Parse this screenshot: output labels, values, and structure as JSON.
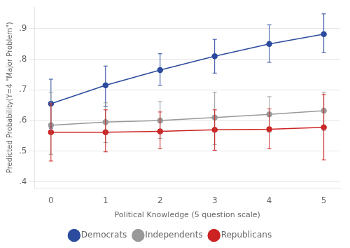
{
  "chart_data": {
    "type": "line",
    "xlabel": "Political Knowledge (5 question scale)",
    "ylabel": "Predicted Probability(Y=4 \"Major Problem\")",
    "x": [
      0,
      1,
      2,
      3,
      4,
      5
    ],
    "series": [
      {
        "name": "Democrats",
        "color": "#2b4b9e",
        "values": [
          0.655,
          0.715,
          0.765,
          0.81,
          0.85,
          0.882
        ],
        "ci_lo": [
          0.575,
          0.645,
          0.715,
          0.755,
          0.79,
          0.822
        ],
        "ci_hi": [
          0.735,
          0.778,
          0.818,
          0.865,
          0.912,
          0.948
        ]
      },
      {
        "name": "Independents",
        "color": "#999999",
        "values": [
          0.585,
          0.595,
          0.6,
          0.61,
          0.62,
          0.632
        ],
        "ci_lo": [
          0.49,
          0.528,
          0.542,
          0.522,
          0.562,
          0.568
        ],
        "ci_hi": [
          0.692,
          0.658,
          0.662,
          0.692,
          0.678,
          0.692
        ]
      },
      {
        "name": "Republicans",
        "color": "#cc2222",
        "values": [
          0.562,
          0.562,
          0.565,
          0.57,
          0.572,
          0.578
        ],
        "ci_lo": [
          0.468,
          0.498,
          0.508,
          0.503,
          0.508,
          0.472
        ],
        "ci_hi": [
          0.655,
          0.635,
          0.628,
          0.635,
          0.638,
          0.685
        ]
      }
    ],
    "xlim": [
      -0.3,
      5.3
    ],
    "xticks": [
      0,
      1,
      2,
      3,
      4,
      5
    ],
    "ylim": [
      0.38,
      0.97
    ],
    "yticks": [
      {
        "value": 0.4,
        "label": ".4"
      },
      {
        "value": 0.5,
        "label": ".5"
      },
      {
        "value": 0.6,
        "label": ".6"
      },
      {
        "value": 0.7,
        "label": ".7"
      },
      {
        "value": 0.8,
        "label": ".8"
      },
      {
        "value": 0.9,
        "label": ".9"
      }
    ],
    "grid": "y",
    "legend": "bottom",
    "marker": "circle",
    "line_style": "solid"
  }
}
